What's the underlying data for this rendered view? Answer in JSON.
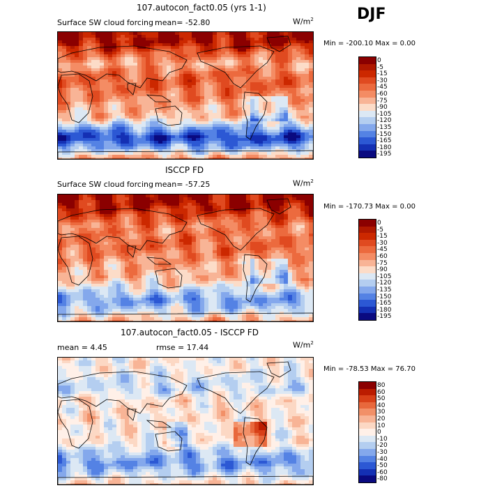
{
  "season": "DJF",
  "units_base": "W/m",
  "units_exp": "2",
  "panels": [
    {
      "title": "107.autocon_fact0.05 (yrs 1-1)",
      "field": "Surface SW cloud forcing",
      "mean_text": "mean=  -52.80",
      "minmax_text": "Min = -200.10 Max =    0.00",
      "levels": [
        "0",
        "-5",
        "-15",
        "-30",
        "-45",
        "-60",
        "-75",
        "-90",
        "-105",
        "-120",
        "-135",
        "-150",
        "-165",
        "-180",
        "-195"
      ]
    },
    {
      "title": "ISCCP FD",
      "field": "Surface SW cloud forcing",
      "mean_text": "mean=  -57.25",
      "minmax_text": "Min = -170.73 Max =    0.00",
      "levels": [
        "0",
        "-5",
        "-15",
        "-30",
        "-45",
        "-60",
        "-75",
        "-90",
        "-105",
        "-120",
        "-135",
        "-150",
        "-165",
        "-180",
        "-195"
      ]
    },
    {
      "title": "107.autocon_fact0.05 - ISCCP FD",
      "mean_text": "mean =    4.45",
      "rmse_text": "rmse =   17.44",
      "minmax_text": "Min = -78.53 Max =  76.70",
      "levels": [
        "80",
        "60",
        "50",
        "40",
        "30",
        "20",
        "10",
        "0",
        "-10",
        "-20",
        "-30",
        "-40",
        "-50",
        "-60",
        "-80"
      ]
    }
  ],
  "colors": {
    "abs_scale": [
      "#8b0000",
      "#b01800",
      "#cc2800",
      "#e04a20",
      "#ec6a3e",
      "#f48c64",
      "#f8b496",
      "#fcdcc8",
      "#dce8f4",
      "#b4cef0",
      "#84a8ec",
      "#5482e4",
      "#2c58d4",
      "#1430b4",
      "#0a0a80"
    ],
    "diff_scale": [
      "#8b0000",
      "#bb1c00",
      "#d84018",
      "#e8683c",
      "#f29068",
      "#f8b496",
      "#fcd8c4",
      "#fff0e8",
      "#dce8f4",
      "#b4cef0",
      "#84a8ec",
      "#5482e4",
      "#2c58d4",
      "#1430b4",
      "#0a0a80"
    ],
    "coast": "#000000"
  },
  "chart_data": [
    {
      "type": "heatmap",
      "title": "107.autocon_fact0.05 (yrs 1-1)",
      "variable": "Surface SW cloud forcing",
      "units": "W/m2",
      "mean": -52.8,
      "min": -200.1,
      "max": 0.0,
      "colorbar_levels": [
        0,
        -5,
        -15,
        -30,
        -45,
        -60,
        -75,
        -90,
        -105,
        -120,
        -135,
        -150,
        -165,
        -180,
        -195
      ],
      "zonal_profile_north_to_south": [
        -2,
        -5,
        -40,
        -70,
        -45,
        -40,
        -55,
        -70,
        -80,
        -130,
        -175,
        -130,
        -60
      ]
    },
    {
      "type": "heatmap",
      "title": "ISCCP FD",
      "variable": "Surface SW cloud forcing",
      "units": "W/m2",
      "mean": -57.25,
      "min": -170.73,
      "max": 0.0,
      "colorbar_levels": [
        0,
        -5,
        -15,
        -30,
        -45,
        -60,
        -75,
        -90,
        -105,
        -120,
        -135,
        -150,
        -165,
        -180,
        -195
      ],
      "zonal_profile_north_to_south": [
        -2,
        -5,
        -30,
        -55,
        -50,
        -45,
        -60,
        -70,
        -80,
        -110,
        -140,
        -115,
        -70
      ]
    },
    {
      "type": "heatmap",
      "title": "107.autocon_fact0.05 - ISCCP FD",
      "units": "W/m2",
      "mean": 4.45,
      "rmse": 17.44,
      "min": -78.53,
      "max": 76.7,
      "colorbar_levels": [
        80,
        60,
        50,
        40,
        30,
        20,
        10,
        0,
        -10,
        -20,
        -30,
        -40,
        -50,
        -60,
        -80
      ],
      "zonal_profile_north_to_south": [
        0,
        0,
        -10,
        -15,
        5,
        5,
        5,
        0,
        0,
        -20,
        -35,
        -15,
        10
      ]
    }
  ]
}
